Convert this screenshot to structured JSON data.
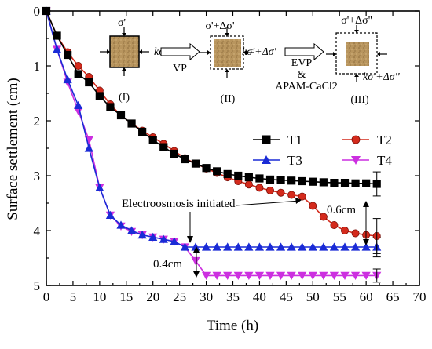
{
  "chart_data": {
    "type": "line",
    "xlabel": "Time (h)",
    "ylabel": "Surface settlement (cm)",
    "xlim": [
      0,
      70
    ],
    "ylim": [
      0,
      5
    ],
    "y_inverted": true,
    "x_ticks": [
      0,
      5,
      10,
      15,
      20,
      25,
      30,
      35,
      40,
      45,
      50,
      55,
      60,
      65,
      70
    ],
    "y_ticks": [
      0,
      1,
      2,
      3,
      4,
      5
    ],
    "legend_position": "right, below inset diagram",
    "series": [
      {
        "name": "T1",
        "color": "#000000",
        "marker": "square",
        "x": [
          0,
          2,
          4,
          6,
          8,
          10,
          12,
          14,
          16,
          18,
          20,
          22,
          24,
          26,
          28,
          30,
          32,
          34,
          36,
          38,
          40,
          42,
          44,
          46,
          48,
          50,
          52,
          54,
          56,
          58,
          60,
          62
        ],
        "y": [
          0,
          0.45,
          0.8,
          1.15,
          1.3,
          1.55,
          1.75,
          1.9,
          2.05,
          2.2,
          2.35,
          2.48,
          2.6,
          2.7,
          2.78,
          2.86,
          2.92,
          2.97,
          3.0,
          3.03,
          3.05,
          3.07,
          3.08,
          3.09,
          3.1,
          3.11,
          3.12,
          3.13,
          3.13,
          3.14,
          3.14,
          3.15
        ],
        "error_bar": {
          "x": 62,
          "y": 3.15,
          "minus": 0.22,
          "plus": 0.22
        }
      },
      {
        "name": "T2",
        "color": "#d42a1c",
        "marker": "circle",
        "x": [
          0,
          2,
          4,
          6,
          8,
          10,
          12,
          14,
          16,
          18,
          20,
          22,
          24,
          26,
          28,
          30,
          32,
          34,
          36,
          38,
          40,
          42,
          44,
          46,
          48,
          50,
          52,
          54,
          56,
          58,
          60,
          62
        ],
        "y": [
          0,
          0.45,
          0.75,
          1.0,
          1.2,
          1.45,
          1.7,
          1.9,
          2.05,
          2.18,
          2.3,
          2.42,
          2.55,
          2.68,
          2.78,
          2.87,
          2.95,
          3.03,
          3.1,
          3.16,
          3.22,
          3.27,
          3.31,
          3.35,
          3.38,
          3.55,
          3.75,
          3.9,
          4.0,
          4.05,
          4.08,
          4.1
        ],
        "error_bar": {
          "x": 62,
          "y": 4.1,
          "minus": 0.32,
          "plus": 0.32
        }
      },
      {
        "name": "T3",
        "color": "#1a2bd6",
        "marker": "triangle-up",
        "x": [
          0,
          2,
          4,
          6,
          8,
          10,
          12,
          14,
          16,
          18,
          20,
          22,
          24,
          26,
          28,
          30,
          32,
          34,
          36,
          38,
          40,
          42,
          44,
          46,
          48,
          50,
          52,
          54,
          56,
          58,
          60,
          62
        ],
        "y": [
          0,
          0.7,
          1.25,
          1.72,
          2.5,
          3.22,
          3.72,
          3.9,
          4.0,
          4.08,
          4.12,
          4.16,
          4.2,
          4.3,
          4.3,
          4.3,
          4.3,
          4.3,
          4.3,
          4.3,
          4.3,
          4.3,
          4.3,
          4.3,
          4.3,
          4.3,
          4.3,
          4.3,
          4.3,
          4.3,
          4.3,
          4.3
        ],
        "error_bar": {
          "x": 62,
          "y": 4.3,
          "minus": 0.18,
          "plus": 0.18
        }
      },
      {
        "name": "T4",
        "color": "#cc2fe0",
        "marker": "triangle-down",
        "x": [
          0,
          2,
          4,
          6,
          8,
          10,
          12,
          14,
          16,
          18,
          20,
          22,
          24,
          26,
          28,
          30,
          32,
          34,
          36,
          38,
          40,
          42,
          44,
          46,
          48,
          50,
          52,
          54,
          56,
          58,
          60,
          62
        ],
        "y": [
          0,
          0.7,
          1.3,
          1.82,
          2.35,
          3.22,
          3.72,
          3.92,
          4.02,
          4.08,
          4.12,
          4.16,
          4.2,
          4.3,
          4.55,
          4.82,
          4.82,
          4.82,
          4.82,
          4.82,
          4.82,
          4.82,
          4.82,
          4.82,
          4.82,
          4.82,
          4.82,
          4.82,
          4.82,
          4.82,
          4.82,
          4.82
        ],
        "error_bar": {
          "x": 62,
          "y": 4.82,
          "minus": 0.12,
          "plus": 0.12
        }
      }
    ],
    "annotations": {
      "electroosmosis": "Electroosmosis initiated",
      "dim_06": "0.6cm",
      "dim_04": "0.4cm"
    },
    "inset": {
      "stages": [
        {
          "label": "(I)",
          "top": "σ'",
          "side": "kσ'"
        },
        {
          "label": "(II)",
          "top": "σ'+Δσ'",
          "side": "kσ'+Δσ'"
        },
        {
          "label": "(III)",
          "top": "σ'+Δσ''",
          "side": "kσ'+Δσ''"
        }
      ],
      "arrow1": "VP",
      "arrow2_line1": "EVP",
      "arrow2_line2": "&",
      "arrow2_line3": "APAM-CaCl2"
    }
  }
}
